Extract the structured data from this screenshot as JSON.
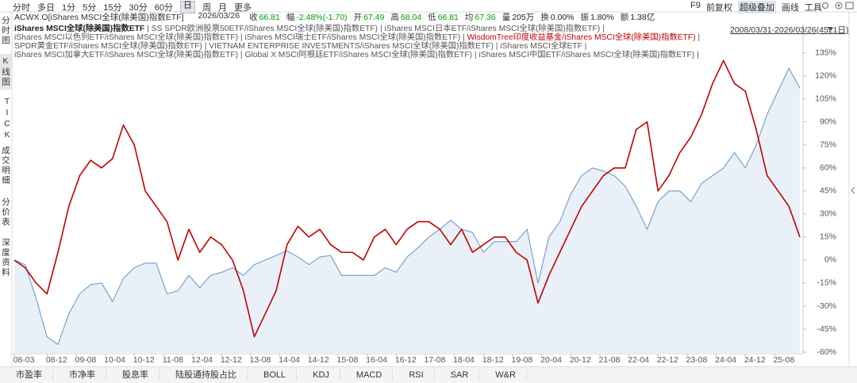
{
  "toolbar": {
    "periods": [
      "分时",
      "多日",
      "1分",
      "5分",
      "15分",
      "30分",
      "60分",
      "日",
      "周",
      "月",
      "更多"
    ],
    "tools": [
      "F9",
      "前复权",
      "超级叠加",
      "画线",
      "工具"
    ]
  },
  "quote": {
    "symbol": "ACWX.O[iShares MSCI全球(除美国)指数ETF]",
    "date": "2026/03/26",
    "items": [
      {
        "label": "收",
        "value": "66.81",
        "color": "#009a00"
      },
      {
        "label": "幅",
        "value": "-2.48%(-1.70)",
        "color": "#009a00"
      },
      {
        "label": "开",
        "value": "67.49",
        "color": "#009a00"
      },
      {
        "label": "高",
        "value": "68.04",
        "color": "#009a00"
      },
      {
        "label": "低",
        "value": "66.81",
        "color": "#009a00"
      },
      {
        "label": "均",
        "value": "67.36",
        "color": "#009a00"
      },
      {
        "label": "量",
        "value": "205万",
        "color": "#222222"
      },
      {
        "label": "换",
        "value": "0.00%",
        "color": "#222222"
      },
      {
        "label": "振",
        "value": "1.80%",
        "color": "#222222"
      },
      {
        "label": "额",
        "value": "1.38亿",
        "color": "#222222"
      }
    ],
    "range": "2008/03/31-2026/03/26(4521日)"
  },
  "side_tabs": [
    "分时图",
    "K线图",
    "TICK",
    "成交明细",
    "分价表",
    "深度资料"
  ],
  "bottom_tabs": [
    "市盈率",
    "市净率",
    "股息率",
    "陆股通持股占比",
    "BOLL",
    "KDJ",
    "MACD",
    "RSI",
    "SAR",
    "W&R"
  ],
  "chart_data": {
    "type": "line",
    "legend_text": [
      [
        " | SS SPDR欧洲股票50ETF/iShares MSCI全球(除美国)指数ETF) | iShares MSCI日本ETF/iShares MSCI全球(除美国)指数ETF) |"
      ],
      [
        "iShares MSCI以色列ETF/iShares MSCI全球(除美国)指数ETF) | iShares MSCI瑞士ETF/iShares MSCI全球(除美国)指数ETF) | ",
        " |"
      ],
      [
        "SPDR黄金ETF/iShares MSCI全球(除美国)指数ETF) | VIETNAM ENTERPRISE INVESTMENTS/iShares MSCI全球(除美国)指数ETF) | iShares MSCI全球ETF |"
      ],
      [
        "iShares MSCI加拿大ETF/iShares MSCI全球(除美国)指数ETF) | Global X MSCI阿根廷ETF/iShares MSCI全球(除美国)指数ETF) | iShares MSCI中国ETF/iShares MSCI全球(除美国)指数ETF) |"
      ]
    ],
    "x": [
      "08-03",
      "08-06",
      "08-09",
      "08-12",
      "09-03",
      "09-06",
      "09-09",
      "09-12",
      "10-03",
      "10-06",
      "10-09",
      "10-12",
      "11-03",
      "11-06",
      "11-09",
      "11-12",
      "12-03",
      "12-06",
      "12-09",
      "12-12",
      "13-03",
      "13-06",
      "13-09",
      "13-12",
      "14-03",
      "14-06",
      "14-09",
      "14-12",
      "15-03",
      "15-06",
      "15-09",
      "15-12",
      "16-03",
      "16-06",
      "16-09",
      "16-12",
      "17-03",
      "17-06",
      "17-09",
      "17-12",
      "18-03",
      "18-06",
      "18-09",
      "18-12",
      "19-03",
      "19-06",
      "19-09",
      "19-12",
      "20-03",
      "20-06",
      "20-09",
      "20-12",
      "21-03",
      "21-06",
      "21-09",
      "21-12",
      "22-03",
      "22-06",
      "22-09",
      "22-12",
      "23-03",
      "23-06",
      "23-09",
      "23-12",
      "24-03",
      "24-06",
      "24-09",
      "24-12",
      "25-03",
      "25-06",
      "25-09",
      "25-12",
      "26-03"
    ],
    "series": [
      {
        "name": "iShares MSCI全球(除美国)指数ETF",
        "color": "#6b9ecb",
        "fill": "#e9f0f8",
        "values": [
          0,
          -3,
          -25,
          -50,
          -55,
          -35,
          -22,
          -16,
          -15,
          -27,
          -12,
          -5,
          -2,
          -2,
          -22,
          -20,
          -10,
          -18,
          -10,
          -8,
          -5,
          -10,
          -3,
          0,
          3,
          6,
          2,
          -3,
          2,
          3,
          -10,
          -10,
          -10,
          -10,
          -5,
          -8,
          2,
          8,
          15,
          20,
          26,
          20,
          18,
          5,
          12,
          12,
          12,
          20,
          -15,
          15,
          25,
          43,
          55,
          60,
          58,
          55,
          48,
          35,
          20,
          38,
          45,
          45,
          38,
          50,
          55,
          60,
          70,
          60,
          75,
          95,
          110,
          125,
          112
        ]
      },
      {
        "name": "WisdomTree印度收益基金/iShares MSCI全球(除美国)指数ETF)",
        "color": "#c00000",
        "values": [
          0,
          -5,
          -15,
          -22,
          5,
          35,
          55,
          65,
          60,
          66,
          88,
          75,
          45,
          35,
          25,
          0,
          20,
          5,
          15,
          10,
          0,
          -20,
          -50,
          -35,
          -20,
          10,
          22,
          15,
          20,
          10,
          5,
          5,
          0,
          15,
          20,
          10,
          20,
          25,
          25,
          20,
          10,
          20,
          5,
          10,
          15,
          15,
          5,
          0,
          -28,
          -10,
          5,
          20,
          35,
          45,
          55,
          60,
          60,
          85,
          90,
          45,
          55,
          70,
          80,
          95,
          115,
          130,
          115,
          110,
          85,
          55,
          45,
          35,
          15
        ]
      }
    ],
    "xticks": [
      "08-03",
      "08-12",
      "09-08",
      "10-04",
      "10-12",
      "11-08",
      "12-04",
      "12-12",
      "13-08",
      "14-04",
      "14-12",
      "15-08",
      "16-04",
      "16-12",
      "17-08",
      "18-04",
      "18-12",
      "19-08",
      "20-04",
      "20-12",
      "21-08",
      "22-04",
      "22-12",
      "23-08",
      "24-04",
      "24-12",
      "25-08"
    ],
    "ylim": [
      -61,
      141
    ],
    "yticks": [
      {
        "value": 135,
        "label": "135%"
      },
      {
        "value": 120,
        "label": "120%"
      },
      {
        "value": 105,
        "label": "105%"
      },
      {
        "value": 90,
        "label": "90%"
      },
      {
        "value": 75,
        "label": "75%"
      },
      {
        "value": 60,
        "label": "60%"
      },
      {
        "value": 45,
        "label": "45%"
      },
      {
        "value": 30,
        "label": "30%"
      },
      {
        "value": 15,
        "label": "15%"
      },
      {
        "value": 0,
        "label": "0%"
      },
      {
        "value": -15,
        "label": "-15%"
      },
      {
        "value": -30,
        "label": "-30%"
      },
      {
        "value": -45,
        "label": "-45%"
      },
      {
        "value": -60,
        "label": "-60%"
      }
    ]
  }
}
